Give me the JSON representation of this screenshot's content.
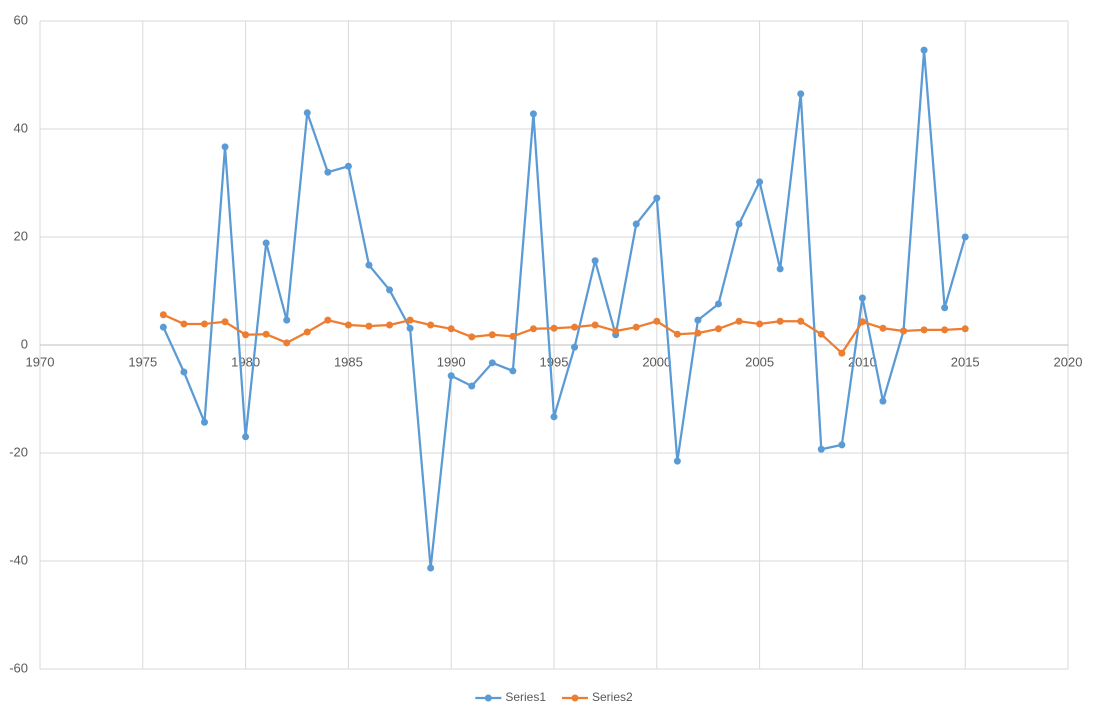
{
  "chart_data": {
    "type": "line",
    "x": [
      1976,
      1977,
      1978,
      1979,
      1980,
      1981,
      1982,
      1983,
      1984,
      1985,
      1986,
      1987,
      1988,
      1989,
      1990,
      1991,
      1992,
      1993,
      1994,
      1995,
      1996,
      1997,
      1998,
      1999,
      2000,
      2001,
      2002,
      2003,
      2004,
      2005,
      2006,
      2007,
      2008,
      2009,
      2010,
      2011,
      2012,
      2013,
      2014,
      2015
    ],
    "series": [
      {
        "name": "Series1",
        "color": "#5b9bd5",
        "values": [
          3.3,
          -5,
          -14.3,
          36.7,
          -17,
          18.9,
          4.6,
          43,
          32,
          33.1,
          14.8,
          10.2,
          3.1,
          -41.3,
          -5.7,
          -7.6,
          -3.3,
          -4.8,
          42.8,
          -13.3,
          -0.4,
          15.6,
          1.9,
          22.4,
          27.2,
          -21.5,
          4.6,
          7.6,
          22.4,
          30.2,
          14.1,
          46.5,
          -19.3,
          -18.5,
          8.7,
          -10.4,
          2.6,
          54.6,
          6.9,
          20
        ]
      },
      {
        "name": "Series2",
        "color": "#ed7d31",
        "values": [
          5.6,
          3.9,
          3.9,
          4.3,
          1.9,
          2,
          0.4,
          2.4,
          4.6,
          3.7,
          3.5,
          3.7,
          4.6,
          3.7,
          3,
          1.5,
          1.9,
          1.6,
          3,
          3.1,
          3.3,
          3.7,
          2.6,
          3.3,
          4.4,
          2,
          2.2,
          3,
          4.4,
          3.9,
          4.4,
          4.4,
          2,
          -1.5,
          4.3,
          3.1,
          2.6,
          2.8,
          2.8,
          3
        ]
      }
    ],
    "xlim": [
      1970,
      2020
    ],
    "xticks": [
      1970,
      1975,
      1980,
      1985,
      1990,
      1995,
      2000,
      2005,
      2010,
      2015,
      2020
    ],
    "ylim": [
      -60,
      60
    ],
    "yticks": [
      -60,
      -40,
      -20,
      0,
      20,
      40,
      60
    ],
    "grid": true,
    "legend": "bottom"
  }
}
